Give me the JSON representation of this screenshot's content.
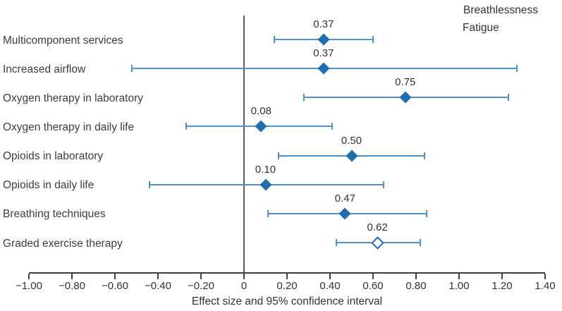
{
  "legend": {
    "items": [
      {
        "label": "Breathlessness",
        "marker": "filled-diamond"
      },
      {
        "label": "Fatigue",
        "marker": "open-diamond"
      }
    ]
  },
  "colors": {
    "marker_blue": "#1f6eb0",
    "ci_line_blue": "#4e92c8",
    "zero_line_gray": "#58595b",
    "axis_gray": "#404040",
    "text_dark": "#3d3d3d"
  },
  "chart_data": {
    "type": "scatter",
    "subtype": "forest-plot",
    "title": "",
    "xlabel": "Effect size and 95% confidence interval",
    "ylabel": "",
    "xlim": [
      -1.0,
      1.4
    ],
    "grid": false,
    "legend_position": "top-right",
    "reference_line_x": 0,
    "xticks": [
      -1.0,
      -0.8,
      -0.6,
      -0.4,
      -0.2,
      0,
      0.2,
      0.4,
      0.6,
      0.8,
      1.0,
      1.2,
      1.4
    ],
    "xtick_labels": [
      "−1.00",
      "−0.80",
      "−0.60",
      "−0.40",
      "−0.20",
      "0",
      "0.20",
      "0.40",
      "0.60",
      "0.80",
      "1.00",
      "1.20",
      "1.40"
    ],
    "rows": [
      {
        "category": "Multicomponent services",
        "effect": 0.37,
        "ci_low": 0.14,
        "ci_high": 0.6,
        "series": "Breathlessness",
        "value_label": "0.37"
      },
      {
        "category": "Increased airflow",
        "effect": 0.37,
        "ci_low": -0.52,
        "ci_high": 1.27,
        "series": "Breathlessness",
        "value_label": "0.37"
      },
      {
        "category": "Oxygen therapy in laboratory",
        "effect": 0.75,
        "ci_low": 0.28,
        "ci_high": 1.23,
        "series": "Breathlessness",
        "value_label": "0.75"
      },
      {
        "category": "Oxygen therapy in daily life",
        "effect": 0.08,
        "ci_low": -0.27,
        "ci_high": 0.41,
        "series": "Breathlessness",
        "value_label": "0.08"
      },
      {
        "category": "Opioids in laboratory",
        "effect": 0.5,
        "ci_low": 0.16,
        "ci_high": 0.84,
        "series": "Breathlessness",
        "value_label": "0.50"
      },
      {
        "category": "Opioids in daily life",
        "effect": 0.1,
        "ci_low": -0.44,
        "ci_high": 0.65,
        "series": "Breathlessness",
        "value_label": "0.10"
      },
      {
        "category": "Breathing techniques",
        "effect": 0.47,
        "ci_low": 0.11,
        "ci_high": 0.85,
        "series": "Breathlessness",
        "value_label": "0.47"
      },
      {
        "category": "Graded exercise therapy",
        "effect": 0.62,
        "ci_low": 0.43,
        "ci_high": 0.82,
        "series": "Fatigue",
        "value_label": "0.62"
      }
    ]
  }
}
